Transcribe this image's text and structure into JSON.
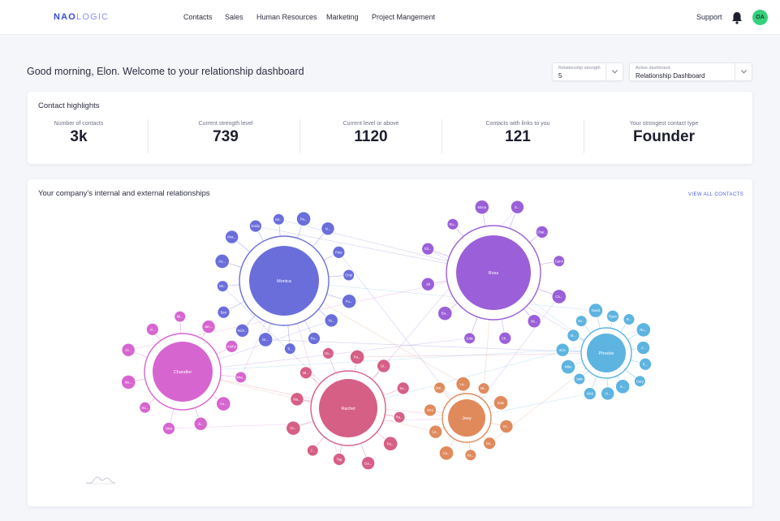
{
  "header": {
    "logo": "NAOLOGIC",
    "nav": [
      "Contacts",
      "Sales",
      "Human Resources",
      "Marketing",
      "Project Mangement"
    ],
    "support": "Support",
    "avatar": "OA",
    "icons": {
      "notifications": "bell-icon"
    }
  },
  "greeting": "Good morning, Elon. Welcome to your relationship dashboard",
  "filters": {
    "strength": {
      "label": "Relationship strength",
      "value": "5"
    },
    "dashboard": {
      "label": "Active dashboard",
      "value": "Relationship Dashboard"
    }
  },
  "highlights": {
    "title": "Contact highlights",
    "stats": [
      {
        "label": "Number of contacts",
        "value": "3k"
      },
      {
        "label": "Current strength level",
        "value": "739"
      },
      {
        "label": "Current level or above",
        "value": "1120"
      },
      {
        "label": "Contacts with links to you",
        "value": "121"
      },
      {
        "label": "Your strongest contact type",
        "value": "Founder"
      }
    ]
  },
  "relationships": {
    "title": "Your company's internal and external relationships",
    "view_all": "VIEW ALL CONTACTS",
    "colors": {
      "Monica": "#6a6edb",
      "Ross": "#9a5fd9",
      "Chandler": "#d765d0",
      "Rachel": "#d65f85",
      "Joey": "#e08a5c",
      "Phoebe": "#5db4e0"
    },
    "hubs": [
      {
        "name": "Monica",
        "satellites": [
          "Mr...",
          "Pa...",
          "N...",
          "Pete",
          "Chip",
          "Fu...",
          "Ya...",
          "Pa...",
          "Ti...",
          "Dr...",
          "Rich...",
          "Ben",
          "Mr...",
          "Au...",
          "Mra...",
          "Emily"
        ]
      },
      {
        "name": "Ross",
        "satellites": [
          "Char...",
          "Carol",
          "Ca...",
          "Mi...",
          "Ch...",
          "Julie",
          "Bo...",
          "Jill",
          "Eli...",
          "Ru...",
          "Mona",
          "E..."
        ]
      },
      {
        "name": "Chandler",
        "satellites": [
          "Jan...",
          "Kathy",
          "Mra...",
          "Au...",
          "Ji...",
          "Nina",
          "Su...",
          "Ma...",
          "Gi...",
          "Ai...",
          "Mi..."
        ]
      },
      {
        "name": "Rachel",
        "satellites": [
          "Pa...",
          "Gi...",
          "Su...",
          "Ra...",
          "Pa...",
          "Ga...",
          "Tag",
          "J...",
          "Gr...",
          "Ma...",
          "Mi...",
          "Gu..."
        ]
      },
      {
        "name": "Joey",
        "satellites": [
          "Mi...",
          "Kate",
          "Er...",
          "Ge...",
          "Ka...",
          "Ca...",
          "La...",
          "Emi",
          "Jan...",
          "La..."
        ]
      },
      {
        "name": "Phoebe",
        "satellites": [
          "Ryan",
          "R...",
          "Ru...",
          "J...",
          "R...",
          "Gary",
          "G...",
          "Vi...",
          "Nick",
          "Jake",
          "Mike",
          "Erio",
          "M...",
          "Se...",
          "David"
        ]
      }
    ]
  }
}
